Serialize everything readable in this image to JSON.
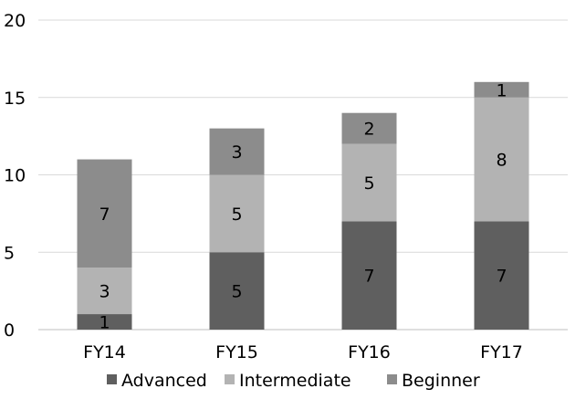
{
  "chart_data": {
    "type": "bar",
    "stacked": true,
    "categories": [
      "FY14",
      "FY15",
      "FY16",
      "FY17"
    ],
    "series": [
      {
        "name": "Advanced",
        "values": [
          1,
          5,
          7,
          7
        ],
        "color": "#5f5f5f"
      },
      {
        "name": "Intermediate",
        "values": [
          3,
          5,
          5,
          8
        ],
        "color": "#b3b3b3"
      },
      {
        "name": "Beginner",
        "values": [
          7,
          3,
          2,
          1
        ],
        "color": "#8c8c8c"
      }
    ],
    "ylim": [
      0,
      20
    ],
    "yticks": [
      0,
      5,
      10,
      15,
      20
    ],
    "grid": true,
    "legend_position": "bottom",
    "data_labels": true
  }
}
